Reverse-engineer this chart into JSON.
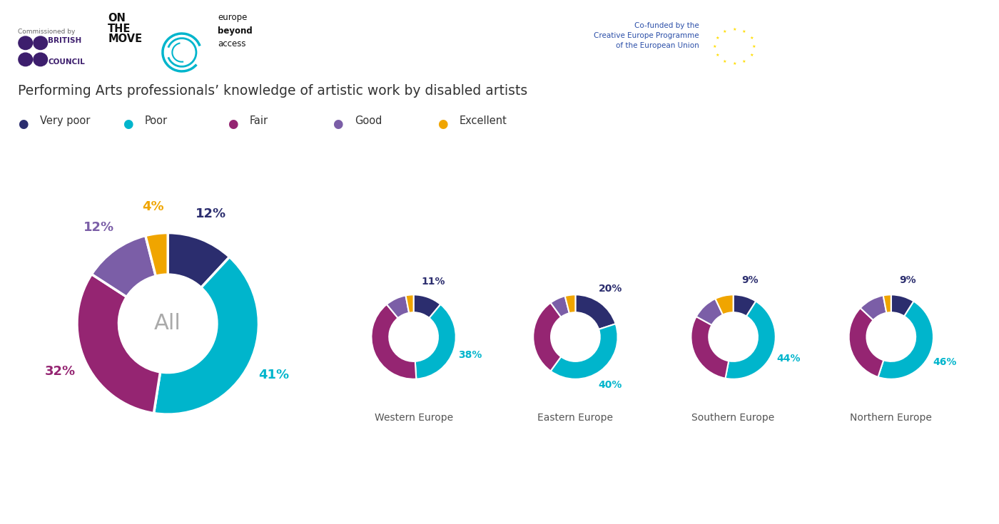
{
  "title": "Performing Arts professionals’ knowledge of artistic work by disabled artists",
  "colors": {
    "very_poor": "#2b2d6e",
    "poor": "#00b5cc",
    "fair": "#952572",
    "good": "#7b5ea7",
    "excellent": "#f0a500"
  },
  "legend_labels": [
    "Very poor",
    "Poor",
    "Fair",
    "Good",
    "Excellent"
  ],
  "charts": [
    {
      "label": "All",
      "values": [
        12,
        41,
        32,
        12,
        4
      ],
      "pct_labels": [
        "12%",
        "41%",
        "32%",
        "12%",
        "4%"
      ]
    },
    {
      "label": "Western Europe",
      "values": [
        11,
        38,
        40,
        8,
        3
      ],
      "pct_labels": [
        "11%",
        "38%",
        null,
        null,
        null
      ]
    },
    {
      "label": "Eastern Europe",
      "values": [
        20,
        40,
        30,
        6,
        4
      ],
      "pct_labels": [
        "20%",
        "40%",
        null,
        null,
        null
      ]
    },
    {
      "label": "Southern Europe",
      "values": [
        9,
        44,
        30,
        10,
        7
      ],
      "pct_labels": [
        "9%",
        "44%",
        null,
        null,
        null
      ]
    },
    {
      "label": "Northern Europe",
      "values": [
        9,
        46,
        32,
        10,
        3
      ],
      "pct_labels": [
        "9%",
        "46%",
        null,
        null,
        null
      ]
    }
  ],
  "background_color": "#f5f5f5",
  "divider_color": "#cccccc",
  "title_color": "#333333",
  "center_label_color": "#aaaaaa",
  "region_label_color": "#555555",
  "commissioned_color": "#666666",
  "bc_color": "#3d1e6d",
  "on_the_move_color": "#111111",
  "cofunded_color": "#2b4fa8",
  "eu_flag_color": "#003399",
  "eu_star_color": "#ffdd00"
}
